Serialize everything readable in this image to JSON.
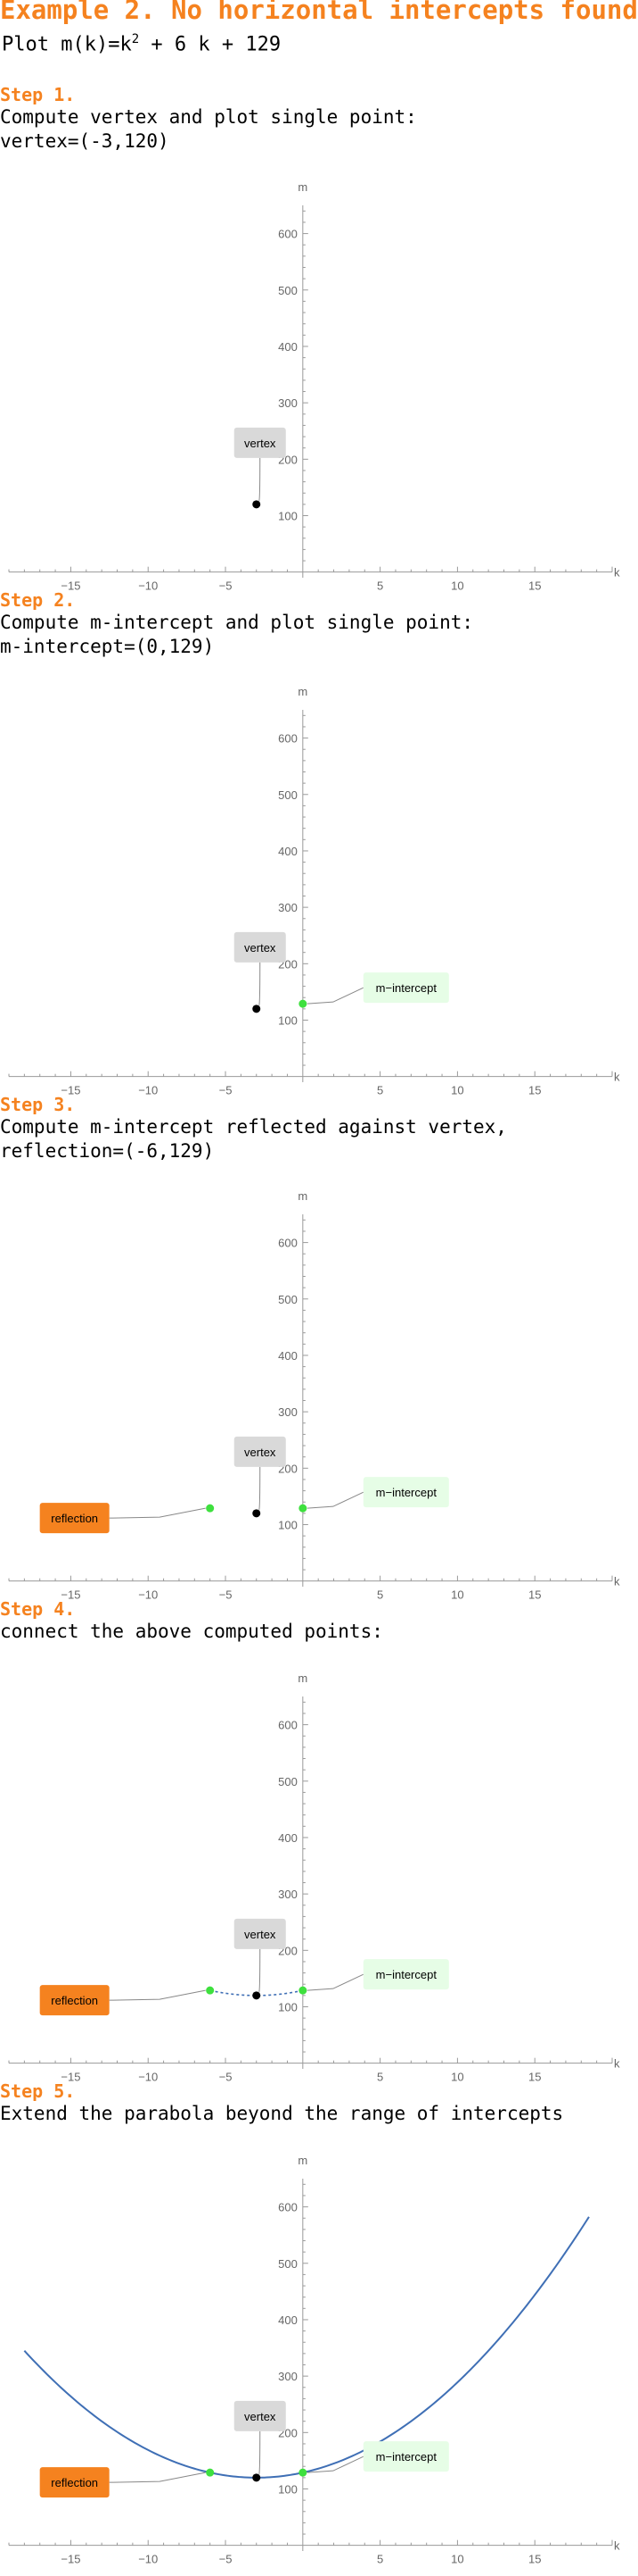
{
  "header": {
    "title": "Example 2. No horizontal intercepts found",
    "plot_prefix": "Plot m(k)=k",
    "plot_exponent": "2",
    "plot_suffix": " + 6 k + 129"
  },
  "steps": [
    {
      "head": "Step 1.",
      "lines": [
        "Compute vertex and plot single point:",
        "vertex=(-3,120)"
      ]
    },
    {
      "head": "Step 2.",
      "lines": [
        "Compute m-intercept and plot single point:",
        "m-intercept=(0,129)"
      ]
    },
    {
      "head": "Step 3.",
      "lines": [
        "Compute m-intercept reflected against vertex,",
        "reflection=(-6,129)"
      ]
    },
    {
      "head": "Step 4.",
      "lines": [
        "connect the above computed points:"
      ]
    },
    {
      "head": "Step 5.",
      "lines": [
        "Extend the parabola beyond the range of intercepts"
      ]
    }
  ],
  "colors": {
    "accent": "#f5821f",
    "curve": "#3f6fb5",
    "point_intercept": "#3ee03e",
    "point_vertex": "#000000",
    "vertex_label_bg": "#d9d9d9",
    "intercept_label_bg": "#e6fde6",
    "reflection_label_bg": "#f5821f"
  },
  "chart_data": [
    {
      "type": "scatter",
      "xlabel": "k",
      "ylabel": "m",
      "xlim": [
        -19,
        20
      ],
      "ylim": [
        -10,
        650
      ],
      "xticks": [
        -15,
        -10,
        -5,
        5,
        10,
        15
      ],
      "yticks": [
        100,
        200,
        300,
        400,
        500,
        600
      ],
      "points": [
        {
          "x": -3,
          "y": 120,
          "label": "vertex"
        }
      ],
      "curve": null
    },
    {
      "type": "scatter",
      "xlabel": "k",
      "ylabel": "m",
      "xlim": [
        -19,
        20
      ],
      "ylim": [
        -10,
        650
      ],
      "xticks": [
        -15,
        -10,
        -5,
        5,
        10,
        15
      ],
      "yticks": [
        100,
        200,
        300,
        400,
        500,
        600
      ],
      "points": [
        {
          "x": -3,
          "y": 120,
          "label": "vertex"
        },
        {
          "x": 0,
          "y": 129,
          "label": "m-intercept"
        }
      ],
      "curve": null
    },
    {
      "type": "scatter",
      "xlabel": "k",
      "ylabel": "m",
      "xlim": [
        -19,
        20
      ],
      "ylim": [
        -10,
        650
      ],
      "xticks": [
        -15,
        -10,
        -5,
        5,
        10,
        15
      ],
      "yticks": [
        100,
        200,
        300,
        400,
        500,
        600
      ],
      "points": [
        {
          "x": -3,
          "y": 120,
          "label": "vertex"
        },
        {
          "x": 0,
          "y": 129,
          "label": "m-intercept"
        },
        {
          "x": -6,
          "y": 129,
          "label": "reflection"
        }
      ],
      "curve": null
    },
    {
      "type": "line",
      "xlabel": "k",
      "ylabel": "m",
      "xlim": [
        -19,
        20
      ],
      "ylim": [
        -10,
        650
      ],
      "xticks": [
        -15,
        -10,
        -5,
        5,
        10,
        15
      ],
      "yticks": [
        100,
        200,
        300,
        400,
        500,
        600
      ],
      "points": [
        {
          "x": -3,
          "y": 120,
          "label": "vertex"
        },
        {
          "x": 0,
          "y": 129,
          "label": "m-intercept"
        },
        {
          "x": -6,
          "y": 129,
          "label": "reflection"
        }
      ],
      "curve": {
        "a": 1,
        "b": 6,
        "c": 129,
        "from": -6,
        "to": 0,
        "style": "dashed"
      }
    },
    {
      "type": "line",
      "xlabel": "k",
      "ylabel": "m",
      "xlim": [
        -19,
        20
      ],
      "ylim": [
        -10,
        650
      ],
      "xticks": [
        -15,
        -10,
        -5,
        5,
        10,
        15
      ],
      "yticks": [
        100,
        200,
        300,
        400,
        500,
        600
      ],
      "points": [
        {
          "x": -3,
          "y": 120,
          "label": "vertex"
        },
        {
          "x": 0,
          "y": 129,
          "label": "m-intercept"
        },
        {
          "x": -6,
          "y": 129,
          "label": "reflection"
        }
      ],
      "curve": {
        "a": 1,
        "b": 6,
        "c": 129,
        "from": -18,
        "to": 18.5,
        "style": "solid"
      }
    }
  ]
}
